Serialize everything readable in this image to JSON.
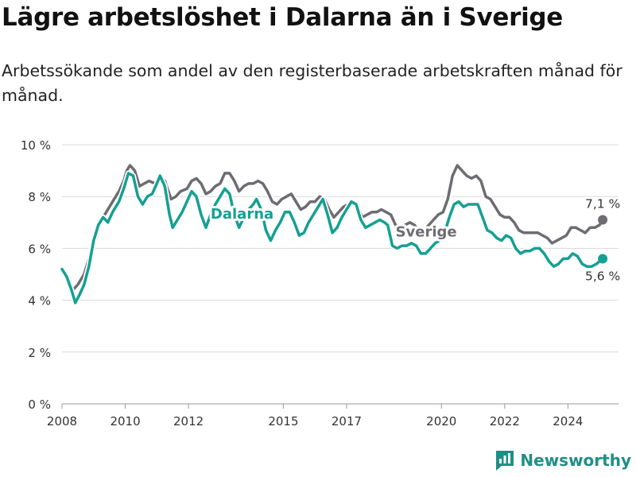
{
  "title": "Lägre arbetslöshet i Dalarna än i Sverige",
  "subtitle": "Arbetssökande som andel av den registerbaserade arbetskraften månad för månad.",
  "brand": "Newsworthy",
  "colors": {
    "sverige": "#6e6c72",
    "dalarna": "#14a093",
    "grid": "#d9d9d9",
    "brand": "#1f8f85"
  },
  "chart_data": {
    "type": "line",
    "title": "Lägre arbetslöshet i Dalarna än i Sverige",
    "subtitle": "Arbetssökande som andel av den registerbaserade arbetskraften månad för månad.",
    "xlabel": "",
    "ylabel": "",
    "ylim": [
      0,
      10
    ],
    "xlim": [
      2008,
      2025.6
    ],
    "grid": true,
    "legend": "inline labels",
    "y_ticks": [
      {
        "value": 0,
        "label": "0 %"
      },
      {
        "value": 2,
        "label": "2 %"
      },
      {
        "value": 4,
        "label": "4 %"
      },
      {
        "value": 6,
        "label": "6 %"
      },
      {
        "value": 8,
        "label": "8 %"
      },
      {
        "value": 10,
        "label": "10 %"
      }
    ],
    "x_ticks": [
      {
        "value": 2008,
        "label": "2008"
      },
      {
        "value": 2010,
        "label": "2010"
      },
      {
        "value": 2012,
        "label": "2012"
      },
      {
        "value": 2015,
        "label": "2015"
      },
      {
        "value": 2017,
        "label": "2017"
      },
      {
        "value": 2020,
        "label": "2020"
      },
      {
        "value": 2022,
        "label": "2022"
      },
      {
        "value": 2024,
        "label": "2024"
      }
    ],
    "series": [
      {
        "name": "Sverige",
        "end_label": "7,1 %",
        "points": [
          [
            2008.0,
            5.2
          ],
          [
            2008.2,
            4.9
          ],
          [
            2008.35,
            4.4
          ],
          [
            2008.5,
            4.6
          ],
          [
            2008.7,
            5.0
          ],
          [
            2008.85,
            5.6
          ],
          [
            2009.0,
            6.4
          ],
          [
            2009.2,
            7.0
          ],
          [
            2009.4,
            7.4
          ],
          [
            2009.6,
            7.8
          ],
          [
            2009.8,
            8.2
          ],
          [
            2009.95,
            8.6
          ],
          [
            2010.05,
            9.0
          ],
          [
            2010.15,
            9.2
          ],
          [
            2010.3,
            9.0
          ],
          [
            2010.45,
            8.4
          ],
          [
            2010.6,
            8.5
          ],
          [
            2010.75,
            8.6
          ],
          [
            2010.95,
            8.5
          ],
          [
            2011.1,
            8.7
          ],
          [
            2011.25,
            8.6
          ],
          [
            2011.45,
            7.9
          ],
          [
            2011.6,
            8.0
          ],
          [
            2011.75,
            8.2
          ],
          [
            2011.95,
            8.3
          ],
          [
            2012.1,
            8.6
          ],
          [
            2012.25,
            8.7
          ],
          [
            2012.4,
            8.5
          ],
          [
            2012.55,
            8.1
          ],
          [
            2012.7,
            8.2
          ],
          [
            2012.85,
            8.4
          ],
          [
            2013.0,
            8.5
          ],
          [
            2013.15,
            8.9
          ],
          [
            2013.3,
            8.9
          ],
          [
            2013.45,
            8.6
          ],
          [
            2013.6,
            8.2
          ],
          [
            2013.75,
            8.4
          ],
          [
            2013.9,
            8.5
          ],
          [
            2014.05,
            8.5
          ],
          [
            2014.2,
            8.6
          ],
          [
            2014.35,
            8.5
          ],
          [
            2014.5,
            8.2
          ],
          [
            2014.65,
            7.8
          ],
          [
            2014.8,
            7.7
          ],
          [
            2014.95,
            7.9
          ],
          [
            2015.1,
            8.0
          ],
          [
            2015.25,
            8.1
          ],
          [
            2015.4,
            7.8
          ],
          [
            2015.55,
            7.5
          ],
          [
            2015.7,
            7.6
          ],
          [
            2015.85,
            7.8
          ],
          [
            2016.0,
            7.8
          ],
          [
            2016.15,
            8.0
          ],
          [
            2016.3,
            7.9
          ],
          [
            2016.45,
            7.5
          ],
          [
            2016.6,
            7.2
          ],
          [
            2016.75,
            7.4
          ],
          [
            2016.9,
            7.6
          ],
          [
            2017.05,
            7.7
          ],
          [
            2017.2,
            7.8
          ],
          [
            2017.35,
            7.6
          ],
          [
            2017.5,
            7.2
          ],
          [
            2017.65,
            7.3
          ],
          [
            2017.8,
            7.4
          ],
          [
            2017.95,
            7.4
          ],
          [
            2018.1,
            7.5
          ],
          [
            2018.25,
            7.4
          ],
          [
            2018.4,
            7.3
          ],
          [
            2018.55,
            6.9
          ],
          [
            2018.7,
            6.8
          ],
          [
            2018.85,
            6.9
          ],
          [
            2019.0,
            7.0
          ],
          [
            2019.15,
            6.9
          ],
          [
            2019.3,
            6.6
          ],
          [
            2019.45,
            6.7
          ],
          [
            2019.6,
            6.9
          ],
          [
            2019.75,
            7.1
          ],
          [
            2019.9,
            7.3
          ],
          [
            2020.05,
            7.4
          ],
          [
            2020.2,
            7.9
          ],
          [
            2020.35,
            8.8
          ],
          [
            2020.5,
            9.2
          ],
          [
            2020.65,
            9.0
          ],
          [
            2020.8,
            8.8
          ],
          [
            2020.95,
            8.7
          ],
          [
            2021.1,
            8.8
          ],
          [
            2021.25,
            8.6
          ],
          [
            2021.4,
            8.0
          ],
          [
            2021.55,
            7.9
          ],
          [
            2021.7,
            7.6
          ],
          [
            2021.85,
            7.3
          ],
          [
            2022.0,
            7.2
          ],
          [
            2022.15,
            7.2
          ],
          [
            2022.3,
            7.0
          ],
          [
            2022.45,
            6.7
          ],
          [
            2022.6,
            6.6
          ],
          [
            2022.75,
            6.6
          ],
          [
            2022.9,
            6.6
          ],
          [
            2023.05,
            6.6
          ],
          [
            2023.2,
            6.5
          ],
          [
            2023.35,
            6.4
          ],
          [
            2023.5,
            6.2
          ],
          [
            2023.65,
            6.3
          ],
          [
            2023.8,
            6.4
          ],
          [
            2023.95,
            6.5
          ],
          [
            2024.1,
            6.8
          ],
          [
            2024.25,
            6.8
          ],
          [
            2024.4,
            6.7
          ],
          [
            2024.55,
            6.6
          ],
          [
            2024.7,
            6.8
          ],
          [
            2024.85,
            6.8
          ],
          [
            2025.0,
            6.9
          ],
          [
            2025.1,
            7.1
          ]
        ]
      },
      {
        "name": "Dalarna",
        "end_label": "5,6 %",
        "points": [
          [
            2008.0,
            5.2
          ],
          [
            2008.15,
            4.9
          ],
          [
            2008.3,
            4.4
          ],
          [
            2008.42,
            3.9
          ],
          [
            2008.55,
            4.2
          ],
          [
            2008.7,
            4.6
          ],
          [
            2008.85,
            5.3
          ],
          [
            2009.0,
            6.3
          ],
          [
            2009.15,
            6.9
          ],
          [
            2009.3,
            7.2
          ],
          [
            2009.45,
            7.0
          ],
          [
            2009.6,
            7.4
          ],
          [
            2009.8,
            7.8
          ],
          [
            2009.95,
            8.3
          ],
          [
            2010.1,
            8.9
          ],
          [
            2010.25,
            8.8
          ],
          [
            2010.4,
            8.0
          ],
          [
            2010.55,
            7.7
          ],
          [
            2010.7,
            8.0
          ],
          [
            2010.85,
            8.1
          ],
          [
            2011.0,
            8.5
          ],
          [
            2011.1,
            8.8
          ],
          [
            2011.25,
            8.4
          ],
          [
            2011.4,
            7.3
          ],
          [
            2011.5,
            6.8
          ],
          [
            2011.65,
            7.1
          ],
          [
            2011.8,
            7.4
          ],
          [
            2011.95,
            7.8
          ],
          [
            2012.1,
            8.2
          ],
          [
            2012.25,
            8.0
          ],
          [
            2012.4,
            7.3
          ],
          [
            2012.55,
            6.8
          ],
          [
            2012.7,
            7.3
          ],
          [
            2012.85,
            7.7
          ],
          [
            2013.0,
            8.0
          ],
          [
            2013.15,
            8.3
          ],
          [
            2013.3,
            8.1
          ],
          [
            2013.45,
            7.3
          ],
          [
            2013.6,
            6.8
          ],
          [
            2013.75,
            7.2
          ],
          [
            2013.9,
            7.5
          ],
          [
            2014.05,
            7.7
          ],
          [
            2014.15,
            7.9
          ],
          [
            2014.3,
            7.5
          ],
          [
            2014.45,
            6.7
          ],
          [
            2014.6,
            6.3
          ],
          [
            2014.75,
            6.7
          ],
          [
            2014.9,
            7.0
          ],
          [
            2015.05,
            7.4
          ],
          [
            2015.2,
            7.4
          ],
          [
            2015.35,
            7.0
          ],
          [
            2015.5,
            6.5
          ],
          [
            2015.65,
            6.6
          ],
          [
            2015.8,
            7.0
          ],
          [
            2015.95,
            7.3
          ],
          [
            2016.1,
            7.6
          ],
          [
            2016.25,
            7.9
          ],
          [
            2016.4,
            7.3
          ],
          [
            2016.55,
            6.6
          ],
          [
            2016.7,
            6.8
          ],
          [
            2016.85,
            7.2
          ],
          [
            2017.0,
            7.5
          ],
          [
            2017.15,
            7.8
          ],
          [
            2017.3,
            7.7
          ],
          [
            2017.45,
            7.1
          ],
          [
            2017.6,
            6.8
          ],
          [
            2017.75,
            6.9
          ],
          [
            2017.9,
            7.0
          ],
          [
            2018.05,
            7.1
          ],
          [
            2018.2,
            7.0
          ],
          [
            2018.3,
            6.9
          ],
          [
            2018.45,
            6.1
          ],
          [
            2018.6,
            6.0
          ],
          [
            2018.75,
            6.1
          ],
          [
            2018.9,
            6.1
          ],
          [
            2019.05,
            6.2
          ],
          [
            2019.2,
            6.1
          ],
          [
            2019.35,
            5.8
          ],
          [
            2019.5,
            5.8
          ],
          [
            2019.65,
            6.0
          ],
          [
            2019.8,
            6.2
          ],
          [
            2019.95,
            6.3
          ],
          [
            2020.1,
            6.6
          ],
          [
            2020.25,
            7.2
          ],
          [
            2020.4,
            7.7
          ],
          [
            2020.55,
            7.8
          ],
          [
            2020.7,
            7.6
          ],
          [
            2020.85,
            7.7
          ],
          [
            2021.0,
            7.7
          ],
          [
            2021.15,
            7.7
          ],
          [
            2021.3,
            7.2
          ],
          [
            2021.45,
            6.7
          ],
          [
            2021.6,
            6.6
          ],
          [
            2021.75,
            6.4
          ],
          [
            2021.9,
            6.3
          ],
          [
            2022.05,
            6.5
          ],
          [
            2022.2,
            6.4
          ],
          [
            2022.35,
            6.0
          ],
          [
            2022.5,
            5.8
          ],
          [
            2022.65,
            5.9
          ],
          [
            2022.8,
            5.9
          ],
          [
            2022.95,
            6.0
          ],
          [
            2023.1,
            6.0
          ],
          [
            2023.25,
            5.8
          ],
          [
            2023.4,
            5.5
          ],
          [
            2023.55,
            5.3
          ],
          [
            2023.7,
            5.4
          ],
          [
            2023.85,
            5.6
          ],
          [
            2024.0,
            5.6
          ],
          [
            2024.15,
            5.8
          ],
          [
            2024.3,
            5.7
          ],
          [
            2024.45,
            5.4
          ],
          [
            2024.6,
            5.3
          ],
          [
            2024.75,
            5.3
          ],
          [
            2024.9,
            5.4
          ],
          [
            2025.1,
            5.6
          ]
        ]
      }
    ]
  }
}
